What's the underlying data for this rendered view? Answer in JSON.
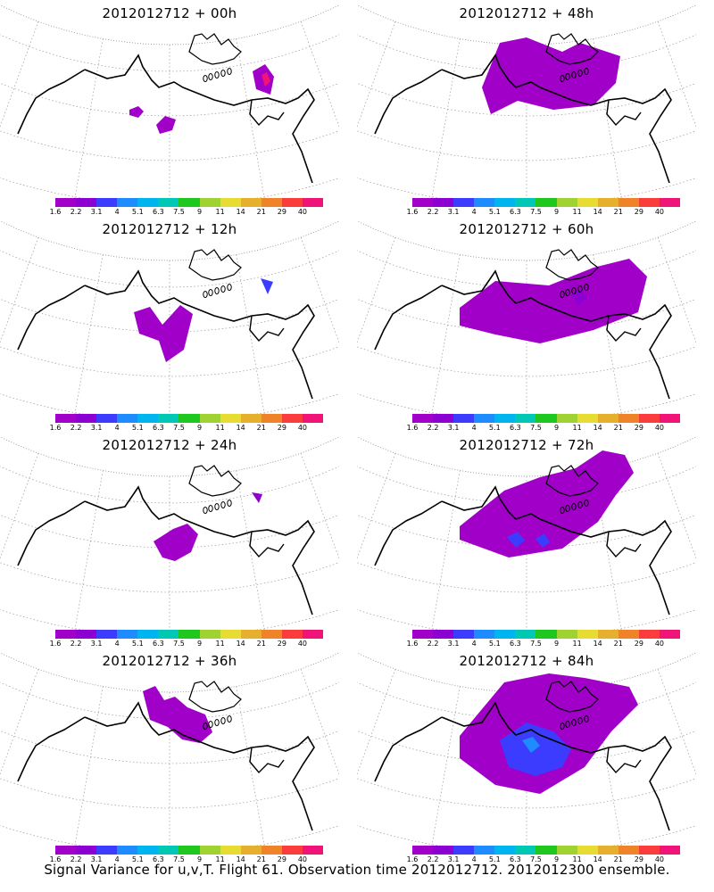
{
  "panels": [
    {
      "title": "2012012712 + 00h"
    },
    {
      "title": "2012012712 + 48h"
    },
    {
      "title": "2012012712 + 12h"
    },
    {
      "title": "2012012712 + 60h"
    },
    {
      "title": "2012012712 + 24h"
    },
    {
      "title": "2012012712 + 72h"
    },
    {
      "title": "2012012712 + 36h"
    },
    {
      "title": "2012012712 + 84h"
    }
  ],
  "colorbar": {
    "labels": [
      "1.6",
      "2.2",
      "3.1",
      "4",
      "5.1",
      "6.3",
      "7.5",
      "9",
      "11",
      "14",
      "21",
      "29",
      "40"
    ],
    "colors": [
      "#a000c8",
      "#8c00d2",
      "#3c3cff",
      "#1e8cff",
      "#00b4f0",
      "#00c8b4",
      "#1ec81e",
      "#a0d232",
      "#e6dc32",
      "#e6af2d",
      "#f08228",
      "#fa3c3c",
      "#f01478"
    ]
  },
  "footer": "Signal Variance for u,v,T. Flight 61. Observation time 2012012712. 2012012300 ensemble.",
  "colors": {
    "shade_main": "#a000c8",
    "shade_mid": "#8c00d2",
    "shade_high": "#3c3cff",
    "shade_peak": "#1e8cff",
    "shade_hot": "#f01478"
  }
}
